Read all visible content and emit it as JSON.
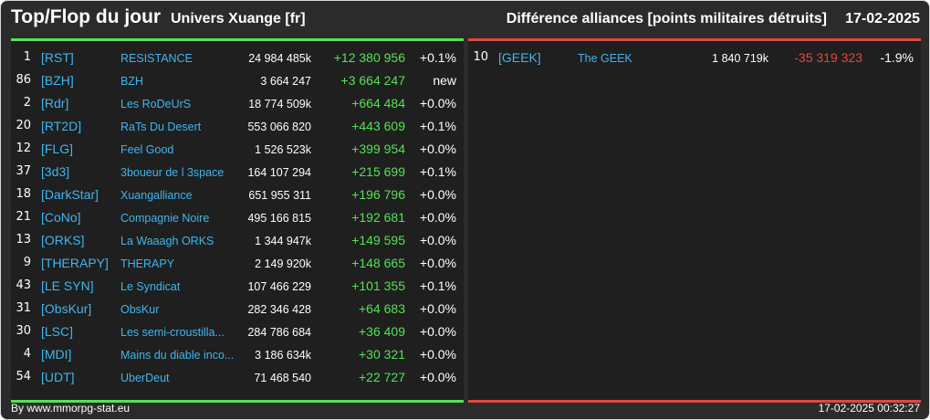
{
  "header": {
    "title": "Top/Flop du jour",
    "universe": "Univers Xuange [fr]",
    "metric": "Différence alliances [points militaires détruits]",
    "date": "17-02-2025"
  },
  "top": [
    {
      "rank": "1",
      "tag": "[RST]",
      "name": "RESISTANCE",
      "points": "24 984 485k",
      "diff": "+12 380 956",
      "pct": "+0.1%"
    },
    {
      "rank": "86",
      "tag": "[BZH]",
      "name": "BZH",
      "points": "3 664 247",
      "diff": "+3 664 247",
      "pct": "new"
    },
    {
      "rank": "2",
      "tag": "[Rdr]",
      "name": "Les RoDeUrS",
      "points": "18 774 509k",
      "diff": "+664 484",
      "pct": "+0.0%"
    },
    {
      "rank": "20",
      "tag": "[RT2D]",
      "name": "RaTs Du Desert",
      "points": "553 066 820",
      "diff": "+443 609",
      "pct": "+0.1%"
    },
    {
      "rank": "12",
      "tag": "[FLG]",
      "name": "Feel Good",
      "points": "1 526 523k",
      "diff": "+399 954",
      "pct": "+0.0%"
    },
    {
      "rank": "37",
      "tag": "[3d3]",
      "name": "3boueur de l 3space",
      "points": "164 107 294",
      "diff": "+215 699",
      "pct": "+0.1%"
    },
    {
      "rank": "18",
      "tag": "[DarkStar]",
      "name": "Xuangalliance",
      "points": "651 955 311",
      "diff": "+196 796",
      "pct": "+0.0%"
    },
    {
      "rank": "21",
      "tag": "[CoNo]",
      "name": "Compagnie Noire",
      "points": "495 166 815",
      "diff": "+192 681",
      "pct": "+0.0%"
    },
    {
      "rank": "13",
      "tag": "[ORKS]",
      "name": "La Waaagh ORKS",
      "points": "1 344 947k",
      "diff": "+149 595",
      "pct": "+0.0%"
    },
    {
      "rank": "9",
      "tag": "[THERAPY]",
      "name": "THERAPY",
      "points": "2 149 920k",
      "diff": "+148 665",
      "pct": "+0.0%"
    },
    {
      "rank": "43",
      "tag": "[LE SYN]",
      "name": "Le Syndicat",
      "points": "107 466 229",
      "diff": "+101 355",
      "pct": "+0.1%"
    },
    {
      "rank": "31",
      "tag": "[ObsKur]",
      "name": "ObsKur",
      "points": "282 346 428",
      "diff": "+64 683",
      "pct": "+0.0%"
    },
    {
      "rank": "30",
      "tag": "[LSC]",
      "name": "Les semi-croustilla...",
      "points": "284 786 684",
      "diff": "+36 409",
      "pct": "+0.0%"
    },
    {
      "rank": "4",
      "tag": "[MDI]",
      "name": "Mains du diable inco...",
      "points": "3 186 634k",
      "diff": "+30 321",
      "pct": "+0.0%"
    },
    {
      "rank": "54",
      "tag": "[UDT]",
      "name": "UberDeut",
      "points": "71 468 540",
      "diff": "+22 727",
      "pct": "+0.0%"
    }
  ],
  "flop": [
    {
      "rank": "10",
      "tag": "[GEEK]",
      "name": "The GEEK",
      "points": "1 840 719k",
      "diff": "-35 319 323",
      "pct": "-1.9%"
    }
  ],
  "footer": {
    "source": "By www.mmorpg-stat.eu",
    "timestamp": "17-02-2025 00:32:27"
  },
  "colors": {
    "background": "#2b2b2b",
    "panel": "#1f1f1f",
    "positive": "#55e255",
    "negative": "#e0483f",
    "link": "#3fb6f0"
  }
}
